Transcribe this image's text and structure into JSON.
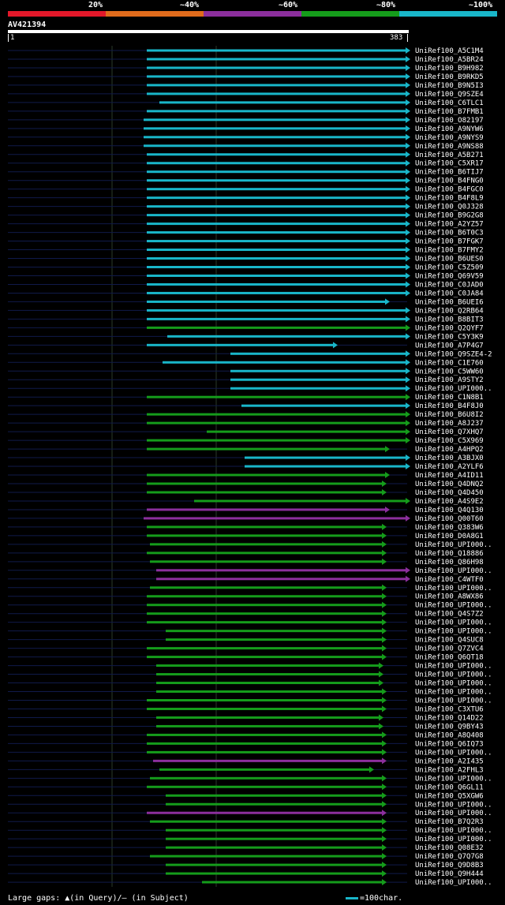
{
  "legend": {
    "labels": [
      "20%",
      "~40%",
      "~60%",
      "~80%",
      "~100%"
    ],
    "colors": [
      "#e3182a",
      "#e06b1c",
      "#8c2f9d",
      "#159c1b",
      "#19b6c9"
    ]
  },
  "query": {
    "id": "AV421394",
    "start": "1",
    "end": "383"
  },
  "hits": [
    {
      "name": "UniRef100_A5C1M4",
      "color": "#19b6c9"
    },
    {
      "name": "UniRef100_A5BR24",
      "color": "#19b6c9"
    },
    {
      "name": "UniRef100_B9H982",
      "color": "#19b6c9"
    },
    {
      "name": "UniRef100_B9RKD5",
      "color": "#19b6c9"
    },
    {
      "name": "UniRef100_B9N5I3",
      "color": "#19b6c9"
    },
    {
      "name": "UniRef100_Q9SZE4",
      "color": "#19b6c9"
    },
    {
      "name": "UniRef100_C6TLC1",
      "color": "#19b6c9"
    },
    {
      "name": "UniRef100_B7FMB1",
      "color": "#19b6c9"
    },
    {
      "name": "UniRef100_O82197",
      "color": "#19b6c9"
    },
    {
      "name": "UniRef100_A9NYW6",
      "color": "#19b6c9"
    },
    {
      "name": "UniRef100_A9NYS9",
      "color": "#19b6c9"
    },
    {
      "name": "UniRef100_A9NS88",
      "color": "#19b6c9"
    },
    {
      "name": "UniRef100_A5B271",
      "color": "#19b6c9"
    },
    {
      "name": "UniRef100_C5XR17",
      "color": "#19b6c9"
    },
    {
      "name": "UniRef100_B6TIJ7",
      "color": "#19b6c9"
    },
    {
      "name": "UniRef100_B4FNG0",
      "color": "#19b6c9"
    },
    {
      "name": "UniRef100_B4FGC0",
      "color": "#19b6c9"
    },
    {
      "name": "UniRef100_B4F8L9",
      "color": "#19b6c9"
    },
    {
      "name": "UniRef100_Q0J328",
      "color": "#19b6c9"
    },
    {
      "name": "UniRef100_B9G2G8",
      "color": "#19b6c9"
    },
    {
      "name": "UniRef100_A2YZ57",
      "color": "#19b6c9"
    },
    {
      "name": "UniRef100_B6T0C3",
      "color": "#19b6c9"
    },
    {
      "name": "UniRef100_B7FGK7",
      "color": "#19b6c9"
    },
    {
      "name": "UniRef100_B7FMY2",
      "color": "#19b6c9"
    },
    {
      "name": "UniRef100_B6UES0",
      "color": "#19b6c9"
    },
    {
      "name": "UniRef100_C5Z509",
      "color": "#19b6c9"
    },
    {
      "name": "UniRef100_Q69V59",
      "color": "#19b6c9"
    },
    {
      "name": "UniRef100_C0JAD0",
      "color": "#19b6c9"
    },
    {
      "name": "UniRef100_C0JA84",
      "color": "#19b6c9"
    },
    {
      "name": "UniRef100_B6UEI6",
      "color": "#19b6c9"
    },
    {
      "name": "UniRef100_Q2RB64",
      "color": "#19b6c9"
    },
    {
      "name": "UniRef100_B8BIT3",
      "color": "#19b6c9"
    },
    {
      "name": "UniRef100_Q2QYF7",
      "color": "#159c1b"
    },
    {
      "name": "UniRef100_C5Y3K9",
      "color": "#19b6c9"
    },
    {
      "name": "UniRef100_A7P4G7",
      "color": "#19b6c9"
    },
    {
      "name": "UniRef100_Q9SZE4-2",
      "color": "#19b6c9"
    },
    {
      "name": "UniRef100_C1E760",
      "color": "#19b6c9"
    },
    {
      "name": "UniRef100_C5WW60",
      "color": "#19b6c9"
    },
    {
      "name": "UniRef100_A9STY2",
      "color": "#19b6c9"
    },
    {
      "name": "UniRef100_UPI000..",
      "color": "#19b6c9"
    },
    {
      "name": "UniRef100_C1N8B1",
      "color": "#159c1b"
    },
    {
      "name": "UniRef100_B4F8J0",
      "color": "#19b6c9"
    },
    {
      "name": "UniRef100_B6U8I2",
      "color": "#159c1b"
    },
    {
      "name": "UniRef100_A8J237",
      "color": "#159c1b"
    },
    {
      "name": "UniRef100_Q7XHQ7",
      "color": "#159c1b"
    },
    {
      "name": "UniRef100_C5X969",
      "color": "#159c1b"
    },
    {
      "name": "UniRef100_A4HPQ2",
      "color": "#159c1b"
    },
    {
      "name": "UniRef100_A3BJX0",
      "color": "#19b6c9"
    },
    {
      "name": "UniRef100_A2YLF6",
      "color": "#19b6c9"
    },
    {
      "name": "UniRef100_A4ID11",
      "color": "#159c1b"
    },
    {
      "name": "UniRef100_Q4DNQ2",
      "color": "#159c1b"
    },
    {
      "name": "UniRef100_Q4D450",
      "color": "#159c1b"
    },
    {
      "name": "UniRef100_A4S9E2",
      "color": "#159c1b"
    },
    {
      "name": "UniRef100_Q4Q130",
      "color": "#8c2f9d"
    },
    {
      "name": "UniRef100_Q00T60",
      "color": "#8c2f9d"
    },
    {
      "name": "UniRef100_Q383W6",
      "color": "#159c1b"
    },
    {
      "name": "UniRef100_D0A8G1",
      "color": "#159c1b"
    },
    {
      "name": "UniRef100_UPI000..",
      "color": "#159c1b"
    },
    {
      "name": "UniRef100_Q18886",
      "color": "#159c1b"
    },
    {
      "name": "UniRef100_Q86H98",
      "color": "#159c1b"
    },
    {
      "name": "UniRef100_UPI000..",
      "color": "#8c2f9d"
    },
    {
      "name": "UniRef100_C4WTF0",
      "color": "#8c2f9d"
    },
    {
      "name": "UniRef100_UPI000..",
      "color": "#159c1b"
    },
    {
      "name": "UniRef100_A8WX86",
      "color": "#159c1b"
    },
    {
      "name": "UniRef100_UPI000..",
      "color": "#159c1b"
    },
    {
      "name": "UniRef100_Q4S7Z2",
      "color": "#159c1b"
    },
    {
      "name": "UniRef100_UPI000..",
      "color": "#159c1b"
    },
    {
      "name": "UniRef100_UPI000..",
      "color": "#159c1b"
    },
    {
      "name": "UniRef100_Q4SUC8",
      "color": "#159c1b"
    },
    {
      "name": "UniRef100_Q7ZVC4",
      "color": "#159c1b"
    },
    {
      "name": "UniRef100_Q6QT18",
      "color": "#159c1b"
    },
    {
      "name": "UniRef100_UPI000..",
      "color": "#159c1b"
    },
    {
      "name": "UniRef100_UPI000..",
      "color": "#159c1b"
    },
    {
      "name": "UniRef100_UPI000..",
      "color": "#159c1b"
    },
    {
      "name": "UniRef100_UPI000..",
      "color": "#159c1b"
    },
    {
      "name": "UniRef100_UPI000..",
      "color": "#159c1b"
    },
    {
      "name": "UniRef100_C3XTU6",
      "color": "#159c1b"
    },
    {
      "name": "UniRef100_Q14D22",
      "color": "#159c1b"
    },
    {
      "name": "UniRef100_Q9BY43",
      "color": "#159c1b"
    },
    {
      "name": "UniRef100_A8Q408",
      "color": "#159c1b"
    },
    {
      "name": "UniRef100_Q6IQ73",
      "color": "#159c1b"
    },
    {
      "name": "UniRef100_UPI000..",
      "color": "#159c1b"
    },
    {
      "name": "UniRef100_A2I435",
      "color": "#8c2f9d"
    },
    {
      "name": "UniRef100_A2FHL3",
      "color": "#159c1b"
    },
    {
      "name": "UniRef100_UPI000..",
      "color": "#159c1b"
    },
    {
      "name": "UniRef100_Q6GL11",
      "color": "#159c1b"
    },
    {
      "name": "UniRef100_Q5XGW6",
      "color": "#159c1b"
    },
    {
      "name": "UniRef100_UPI000..",
      "color": "#159c1b"
    },
    {
      "name": "UniRef100_UPI000..",
      "color": "#8c2f9d"
    },
    {
      "name": "UniRef100_B7Q2R3",
      "color": "#159c1b"
    },
    {
      "name": "UniRef100_UPI000..",
      "color": "#159c1b"
    },
    {
      "name": "UniRef100_UPI000..",
      "color": "#159c1b"
    },
    {
      "name": "UniRef100_Q08E32",
      "color": "#159c1b"
    },
    {
      "name": "UniRef100_Q7Q7G8",
      "color": "#159c1b"
    },
    {
      "name": "UniRef100_Q9D8B3",
      "color": "#159c1b"
    },
    {
      "name": "UniRef100_Q9H444",
      "color": "#159c1b"
    },
    {
      "name": "UniRef100_UPI000..",
      "color": "#159c1b"
    }
  ],
  "footer": {
    "large_gaps_label": "Large gaps: ▲(in Query)/— (in Subject)",
    "scale_label": "=100char."
  }
}
